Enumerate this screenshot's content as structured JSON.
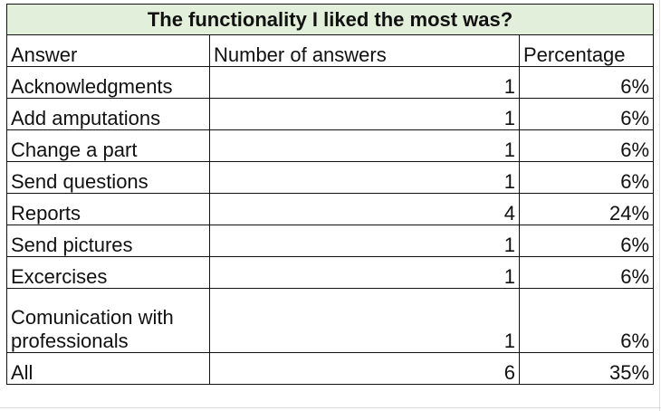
{
  "table": {
    "title": "The functionality I liked the most was?",
    "headers": [
      "Answer",
      "Number of answers",
      "Percentage"
    ],
    "rows": [
      {
        "answer": "Acknowledgments",
        "count": "1",
        "percent": "6%"
      },
      {
        "answer": "Add amputations",
        "count": "1",
        "percent": "6%"
      },
      {
        "answer": "Change a part",
        "count": "1",
        "percent": "6%"
      },
      {
        "answer": "Send questions",
        "count": "1",
        "percent": "6%"
      },
      {
        "answer": "Reports",
        "count": "4",
        "percent": "24%"
      },
      {
        "answer": "Send pictures",
        "count": "1",
        "percent": "6%"
      },
      {
        "answer": "Excercises",
        "count": "1",
        "percent": "6%"
      },
      {
        "answer": "Comunication with professionals",
        "count": "1",
        "percent": "6%"
      },
      {
        "answer": "All",
        "count": "6",
        "percent": "35%"
      }
    ]
  },
  "colors": {
    "title_fill": "#e2efda",
    "border": "#111111",
    "gridline": "#dcdcdc"
  }
}
